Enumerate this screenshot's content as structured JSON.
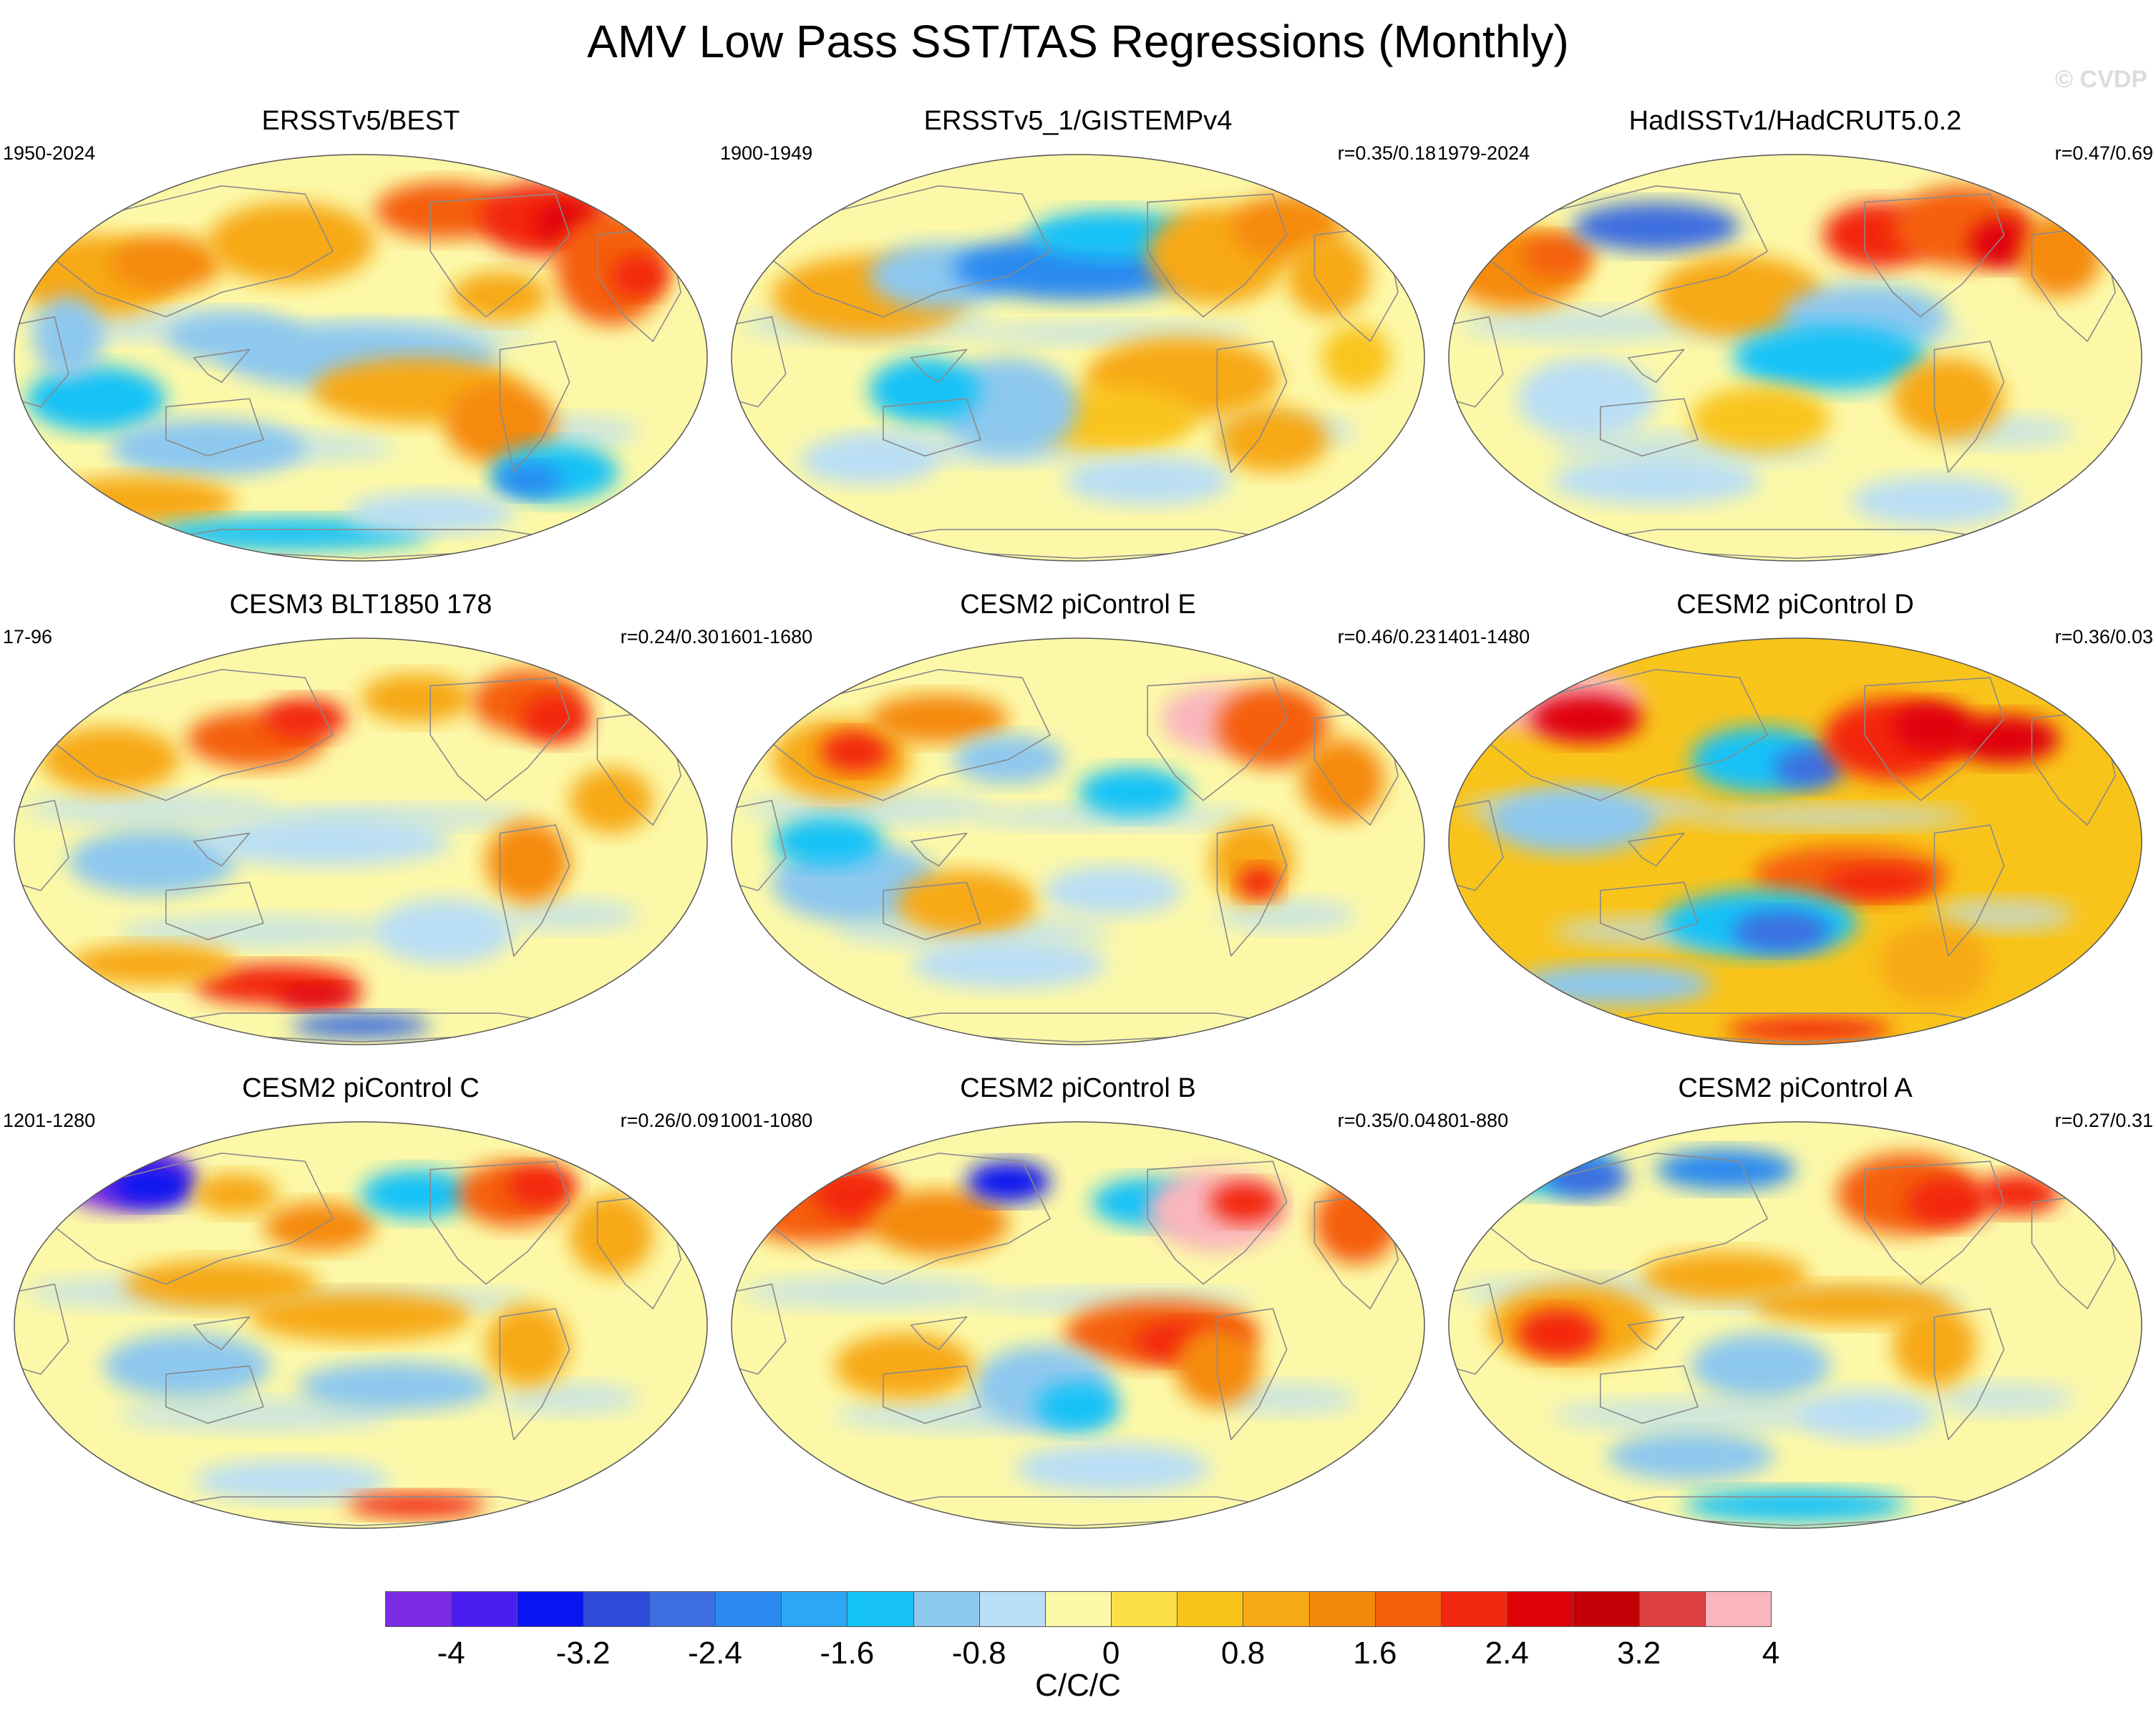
{
  "title": "AMV Low Pass SST/TAS Regressions (Monthly)",
  "watermark": "© CVDP",
  "units": "C/C/C",
  "colorbar": {
    "colors": [
      "#7b2be3",
      "#4a1ef0",
      "#0a14f0",
      "#2e4bd8",
      "#3c6ee0",
      "#2b8af0",
      "#2aa8f5",
      "#16c2f7",
      "#8dc8ef",
      "#b9def5",
      "#fcf8a8",
      "#fbe045",
      "#f9c41a",
      "#f7a915",
      "#f58a0a",
      "#f55f08",
      "#f32810",
      "#e00008",
      "#c40006",
      "#dc4040",
      "#f9b6bc"
    ],
    "tick_labels": [
      "-4",
      "-3.2",
      "-2.4",
      "-1.6",
      "-0.8",
      "0",
      "0.8",
      "1.6",
      "2.4",
      "3.2",
      "4"
    ]
  },
  "panels": [
    {
      "title": "ERSSTv5/BEST",
      "years": "1950-2024",
      "corr": "",
      "pattern": "obs1"
    },
    {
      "title": "ERSSTv5_1/GISTEMPv4",
      "years": "1900-1949",
      "corr": "r=0.35/0.18",
      "pattern": "obs2"
    },
    {
      "title": "HadISSTv1/HadCRUT5.0.2",
      "years": "1979-2024",
      "corr": "r=0.47/0.69",
      "pattern": "obs3"
    },
    {
      "title": "CESM3 BLT1850 178",
      "years": "17-96",
      "corr": "r=0.24/0.30",
      "pattern": "m1"
    },
    {
      "title": "CESM2 piControl E",
      "years": "1601-1680",
      "corr": "r=0.46/0.23",
      "pattern": "m2"
    },
    {
      "title": "CESM2 piControl D",
      "years": "1401-1480",
      "corr": "r=0.36/0.03",
      "pattern": "m3"
    },
    {
      "title": "CESM2 piControl C",
      "years": "1201-1280",
      "corr": "r=0.26/0.09",
      "pattern": "m4"
    },
    {
      "title": "CESM2 piControl B",
      "years": "1001-1080",
      "corr": "r=0.35/0.04",
      "pattern": "m5"
    },
    {
      "title": "CESM2 piControl A",
      "years": "801-880",
      "corr": "r=0.27/0.31",
      "pattern": "m6"
    }
  ]
}
